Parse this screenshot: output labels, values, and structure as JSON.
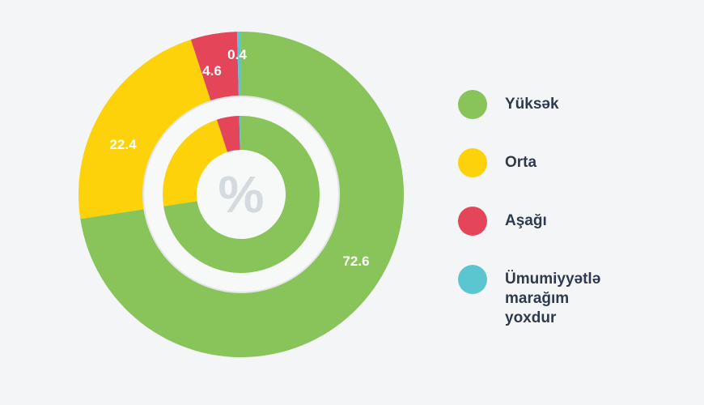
{
  "chart_data": {
    "type": "pie",
    "variant": "double-donut",
    "center_symbol": "%",
    "categories": [
      "Yüksək",
      "Orta",
      "Aşağı",
      "Ümumiyyətlə marağım yoxdur"
    ],
    "legend_lines": [
      [
        "Yüksək"
      ],
      [
        "Orta"
      ],
      [
        "Aşağı"
      ],
      [
        "Ümumiyyətlə",
        "marağım yoxdur"
      ]
    ],
    "values": [
      72.6,
      22.4,
      4.6,
      0.4
    ],
    "labels": [
      "72.6",
      "22.4",
      "4.6",
      "0.4"
    ],
    "colors": [
      "#88c45a",
      "#fdd20b",
      "#e54558",
      "#5cc6d0"
    ],
    "legend_position": "right"
  }
}
